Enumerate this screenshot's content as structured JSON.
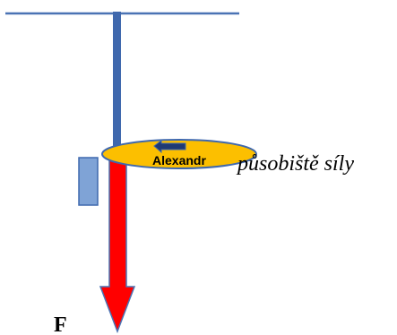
{
  "labels": {
    "application_point": "působiště síly",
    "force_symbol": "F",
    "ellipse_name": "Alexandr"
  },
  "colors": {
    "ceiling": "#4a73b4",
    "string": "#3f68ad",
    "force_arrow": "#ff0000",
    "force_arrow_outline": "#4a73b4",
    "ellipse_fill": "#fcbf00",
    "ellipse_outline": "#3f68ad",
    "block_fill": "#7fa3d6",
    "block_outline": "#3f68ad",
    "small_arrow_fill": "#1f3a73",
    "text": "#000000"
  },
  "icons": {
    "small_arrow": "arrow-left-icon"
  }
}
